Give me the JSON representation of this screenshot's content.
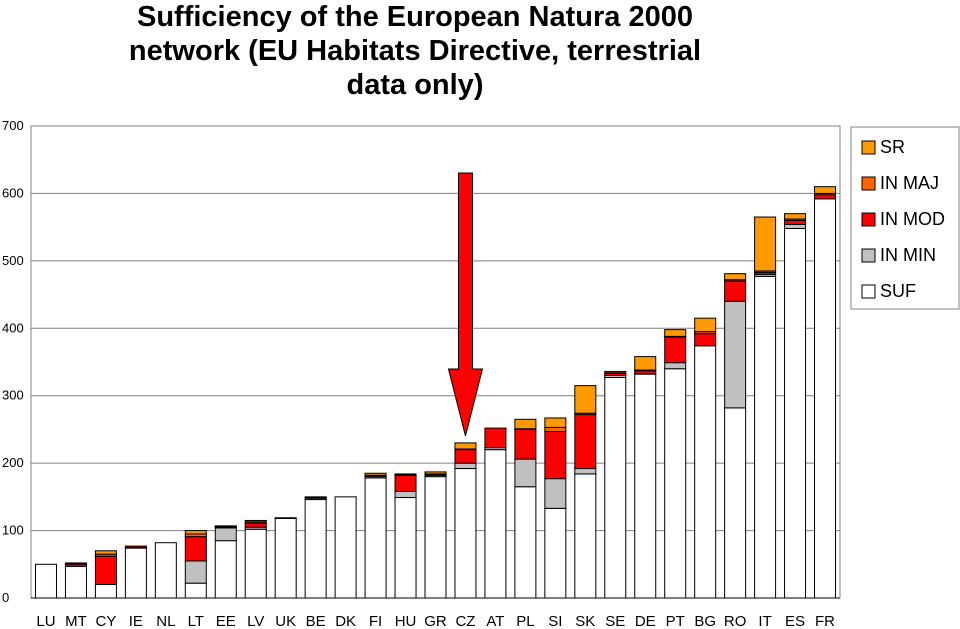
{
  "chart_data": {
    "type": "stacked-bar",
    "title_lines": [
      "Sufficiency of the European Natura 2000",
      "network   (EU Habitats Directive, terrestrial",
      "data only)"
    ],
    "ylim": [
      0,
      700
    ],
    "yticks": [
      0,
      100,
      200,
      300,
      400,
      500,
      600,
      700
    ],
    "ytick_labels": [
      "0",
      "100",
      "200",
      "300",
      "400",
      "500",
      "600",
      "700"
    ],
    "categories": [
      "LU",
      "MT",
      "CY",
      "IE",
      "NL",
      "LT",
      "EE",
      "LV",
      "UK",
      "BE",
      "DK",
      "FI",
      "HU",
      "GR",
      "CZ",
      "AT",
      "PL",
      "SI",
      "SK",
      "SE",
      "DE",
      "PT",
      "BG",
      "RO",
      "IT",
      "ES",
      "FR"
    ],
    "series": [
      {
        "name": "SUF",
        "color": "#ffffff",
        "values": [
          50,
          47,
          20,
          74,
          82,
          22,
          85,
          102,
          118,
          146,
          150,
          178,
          149,
          180,
          192,
          220,
          165,
          133,
          184,
          327,
          332,
          340,
          374,
          282,
          477,
          548,
          592
        ]
      },
      {
        "name": "IN MIN",
        "color": "#c0c0c0",
        "values": [
          0,
          2,
          0,
          1,
          0,
          33,
          19,
          3,
          1,
          2,
          0,
          2,
          9,
          2,
          8,
          3,
          41,
          44,
          8,
          3,
          1,
          9,
          0,
          158,
          3,
          6,
          0
        ]
      },
      {
        "name": "IN MOD",
        "color": "#ff0000",
        "values": [
          0,
          2,
          42,
          2,
          0,
          36,
          1,
          6,
          0,
          1,
          0,
          1,
          24,
          1,
          20,
          29,
          44,
          70,
          80,
          3,
          4,
          38,
          18,
          30,
          3,
          6,
          6
        ]
      },
      {
        "name": "IN MAJ",
        "color": "#ff6600",
        "values": [
          0,
          0,
          3,
          0,
          0,
          4,
          1,
          2,
          0,
          1,
          0,
          1,
          1,
          1,
          1,
          0,
          1,
          6,
          2,
          1,
          1,
          1,
          3,
          2,
          2,
          2,
          2
        ]
      },
      {
        "name": "SR",
        "color": "#ff9900",
        "values": [
          0,
          1,
          5,
          0,
          0,
          5,
          1,
          2,
          0,
          0,
          0,
          3,
          1,
          3,
          9,
          0,
          14,
          14,
          41,
          2,
          20,
          10,
          20,
          9,
          80,
          8,
          10
        ]
      }
    ],
    "legend_order": [
      "SR",
      "IN MAJ",
      "IN MOD",
      "IN MIN",
      "SUF"
    ],
    "annotation": {
      "type": "down-arrow",
      "target_category": "CZ",
      "color": "#ff0000"
    }
  }
}
